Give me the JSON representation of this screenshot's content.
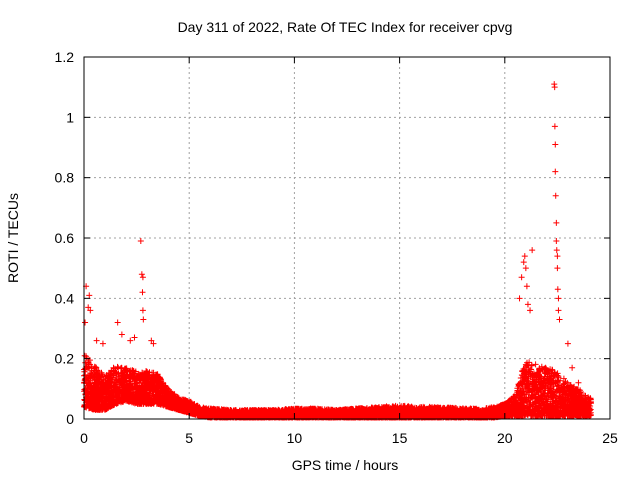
{
  "chart_data": {
    "type": "scatter",
    "title": "Day 311 of 2022, Rate Of TEC Index for receiver cpvg",
    "xlabel": "GPS time / hours",
    "ylabel": "ROTI / TECUs",
    "xlim": [
      0,
      25
    ],
    "ylim": [
      0,
      1.2
    ],
    "xticks": [
      0,
      5,
      10,
      15,
      20,
      25
    ],
    "xtick_labels": [
      "0",
      "5",
      "10",
      "15",
      "20",
      "25"
    ],
    "yticks": [
      0,
      0.2,
      0.4,
      0.6,
      0.8,
      1.0,
      1.2
    ],
    "ytick_labels": [
      "0",
      "0.2",
      "0.4",
      "0.6",
      "0.8",
      "1",
      "1.2"
    ],
    "grid": true,
    "marker": "plus",
    "color": "#ff0000",
    "envelope": {
      "x": [
        0,
        0.5,
        1,
        1.5,
        2,
        2.5,
        3,
        3.5,
        4,
        4.5,
        5,
        5.5,
        6,
        7,
        8,
        9,
        10,
        11,
        12,
        13,
        14,
        15,
        16,
        17,
        18,
        19,
        19.5,
        20,
        20.5,
        21,
        21.5,
        22,
        22.5,
        23,
        23.5,
        24
      ],
      "y_low": [
        0.04,
        0.03,
        0.03,
        0.05,
        0.06,
        0.05,
        0.05,
        0.05,
        0.04,
        0.03,
        0.02,
        0.01,
        0.005,
        0.005,
        0.005,
        0.005,
        0.005,
        0.005,
        0.005,
        0.005,
        0.005,
        0.005,
        0.005,
        0.005,
        0.005,
        0.005,
        0.005,
        0.01,
        0.01,
        0.01,
        0.01,
        0.01,
        0.01,
        0.01,
        0.01,
        0.01
      ],
      "y_high": [
        0.22,
        0.18,
        0.14,
        0.18,
        0.17,
        0.16,
        0.16,
        0.15,
        0.1,
        0.07,
        0.06,
        0.04,
        0.035,
        0.03,
        0.03,
        0.03,
        0.035,
        0.035,
        0.03,
        0.035,
        0.04,
        0.045,
        0.04,
        0.04,
        0.035,
        0.035,
        0.04,
        0.05,
        0.08,
        0.2,
        0.18,
        0.17,
        0.16,
        0.12,
        0.1,
        0.07
      ]
    },
    "outliers": [
      [
        0.05,
        0.32
      ],
      [
        0.1,
        0.44
      ],
      [
        0.2,
        0.37
      ],
      [
        0.25,
        0.41
      ],
      [
        0.3,
        0.36
      ],
      [
        0.6,
        0.26
      ],
      [
        0.9,
        0.25
      ],
      [
        1.6,
        0.32
      ],
      [
        1.8,
        0.28
      ],
      [
        2.2,
        0.26
      ],
      [
        2.4,
        0.27
      ],
      [
        2.7,
        0.59
      ],
      [
        2.75,
        0.48
      ],
      [
        2.8,
        0.47
      ],
      [
        2.78,
        0.42
      ],
      [
        2.8,
        0.36
      ],
      [
        2.82,
        0.33
      ],
      [
        3.2,
        0.26
      ],
      [
        3.3,
        0.25
      ],
      [
        20.7,
        0.4
      ],
      [
        20.8,
        0.47
      ],
      [
        20.9,
        0.52
      ],
      [
        20.95,
        0.54
      ],
      [
        21.0,
        0.5
      ],
      [
        21.05,
        0.44
      ],
      [
        21.1,
        0.38
      ],
      [
        21.2,
        0.36
      ],
      [
        21.3,
        0.56
      ],
      [
        22.35,
        1.11
      ],
      [
        22.37,
        1.1
      ],
      [
        22.38,
        0.97
      ],
      [
        22.4,
        0.91
      ],
      [
        22.4,
        0.82
      ],
      [
        22.42,
        0.74
      ],
      [
        22.45,
        0.65
      ],
      [
        22.45,
        0.59
      ],
      [
        22.47,
        0.56
      ],
      [
        22.5,
        0.54
      ],
      [
        22.5,
        0.5
      ],
      [
        22.52,
        0.43
      ],
      [
        22.55,
        0.4
      ],
      [
        22.55,
        0.36
      ],
      [
        22.6,
        0.33
      ],
      [
        23.0,
        0.25
      ],
      [
        23.2,
        0.17
      ],
      [
        23.5,
        0.12
      ]
    ]
  }
}
